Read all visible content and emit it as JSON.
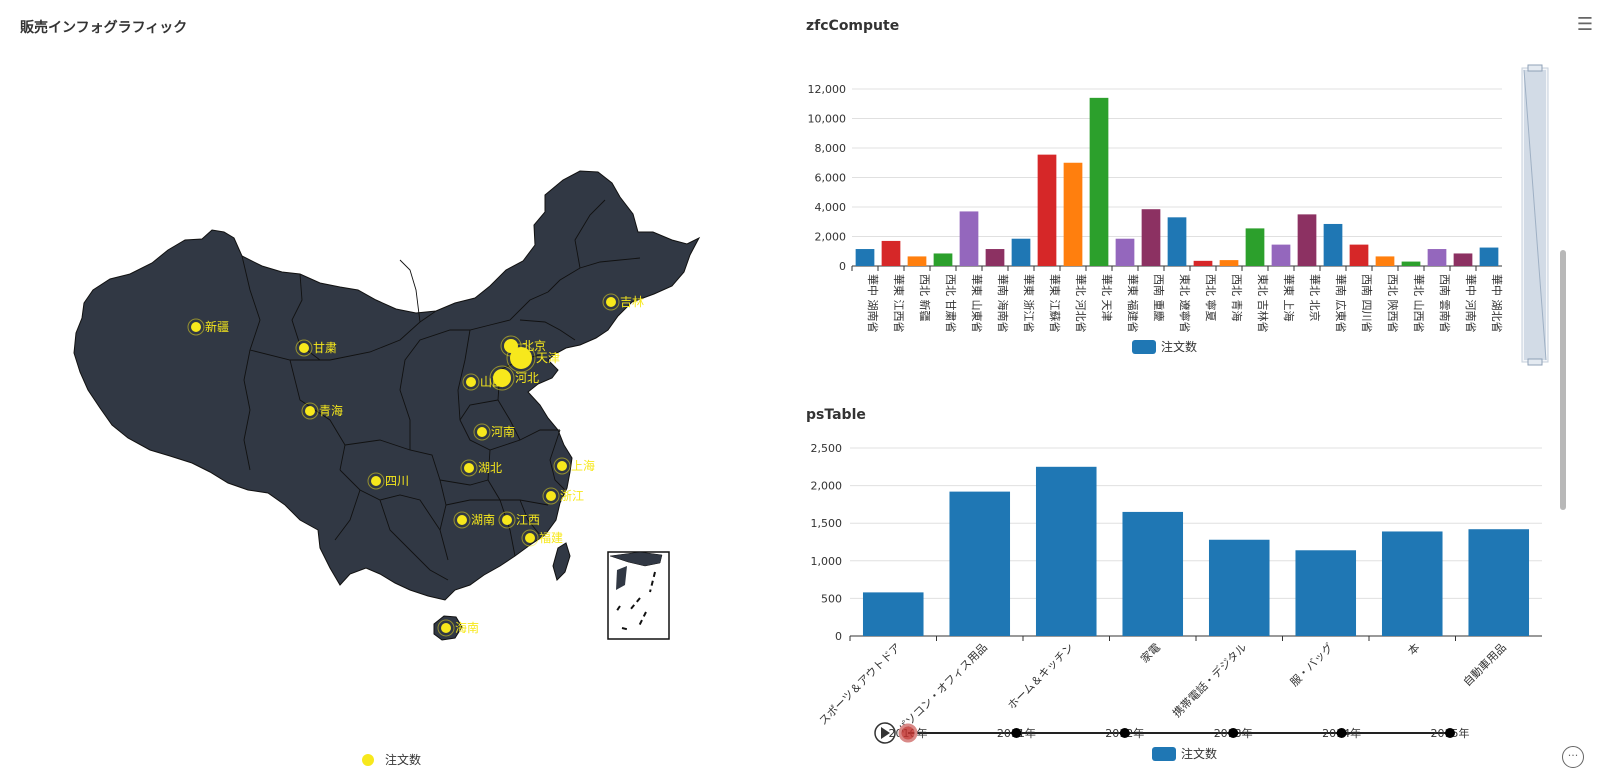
{
  "map_panel": {
    "title": "販売インフォグラフィック",
    "legend_label": "注文数",
    "colors": {
      "land": "#313844",
      "border": "#111111",
      "point": "#f7e81c"
    },
    "cities": [
      {
        "name": "新疆",
        "weight": 1
      },
      {
        "name": "甘粛",
        "weight": 1
      },
      {
        "name": "青海",
        "weight": 1
      },
      {
        "name": "北京",
        "weight": 2
      },
      {
        "name": "天津",
        "weight": 4
      },
      {
        "name": "河北",
        "weight": 3
      },
      {
        "name": "山西",
        "weight": 1
      },
      {
        "name": "河南",
        "weight": 1
      },
      {
        "name": "吉林",
        "weight": 1
      },
      {
        "name": "上海",
        "weight": 1
      },
      {
        "name": "湖北",
        "weight": 1
      },
      {
        "name": "四川",
        "weight": 1
      },
      {
        "name": "浙江",
        "weight": 1
      },
      {
        "name": "湖南",
        "weight": 1
      },
      {
        "name": "江西",
        "weight": 1
      },
      {
        "name": "福建",
        "weight": 1
      },
      {
        "name": "海南",
        "weight": 1
      }
    ]
  },
  "chart1": {
    "title": "zfcCompute",
    "menu_icon": "hamburger-menu-icon",
    "chart_data": {
      "type": "bar",
      "categories": [
        "華中 湖南省",
        "華東 江西省",
        "西北 新疆",
        "西北 甘粛省",
        "華東 山東省",
        "華南 海南省",
        "華東 浙江省",
        "華東 江蘇省",
        "華北 河北省",
        "華北 天津",
        "華東 福建省",
        "西南 重慶",
        "東北 遼寧省",
        "西北 寧夏",
        "西北 青海",
        "東北 吉林省",
        "華東 上海",
        "華北 北京",
        "華南 広東省",
        "西南 四川省",
        "西北 陝西省",
        "華北 山西省",
        "西南 雲南省",
        "華中 河南省",
        "華中 湖北省"
      ],
      "values": [
        1150,
        1700,
        650,
        850,
        3700,
        1150,
        1850,
        7550,
        7000,
        11400,
        1850,
        3850,
        3300,
        350,
        400,
        2550,
        1450,
        3500,
        2850,
        1450,
        650,
        300,
        1150,
        850,
        1250
      ],
      "ylim": [
        0,
        12000
      ],
      "ticks": [
        "0",
        "2,000",
        "4,000",
        "6,000",
        "8,000",
        "10,000",
        "12,000"
      ],
      "legend": "注文数",
      "palette": [
        "#1f77b4",
        "#d62728",
        "#ff7f0e",
        "#2ca02c",
        "#9467bd",
        "#8c3162"
      ],
      "bar_colors": [
        0,
        1,
        2,
        3,
        4,
        5,
        0,
        1,
        2,
        3,
        4,
        5,
        0,
        1,
        2,
        3,
        4,
        5,
        0,
        1,
        2,
        3,
        4,
        5,
        0
      ],
      "grid": true
    }
  },
  "chart2": {
    "title": "psTable",
    "chart_data": {
      "type": "bar",
      "categories": [
        "スポーツ＆アウトドア",
        "パソコン・オフィス用品",
        "ホーム＆キッチン",
        "家電",
        "携帯電話・デジタル",
        "服・バッグ",
        "本",
        "自動車用品"
      ],
      "values": [
        580,
        1920,
        2250,
        1650,
        1280,
        1140,
        1390,
        1420
      ],
      "ylim": [
        0,
        2500
      ],
      "ticks": [
        "0",
        "500",
        "1,000",
        "1,500",
        "2,000",
        "2,500"
      ],
      "legend": "注文数",
      "color": "#1f77b4",
      "grid": true
    },
    "timeline": {
      "years": [
        "2010年",
        "2011年",
        "2012年",
        "2013年",
        "2014年",
        "2015年"
      ],
      "current_index": 0,
      "play_icon": "play-icon"
    }
  },
  "more_icon": "more-icon"
}
